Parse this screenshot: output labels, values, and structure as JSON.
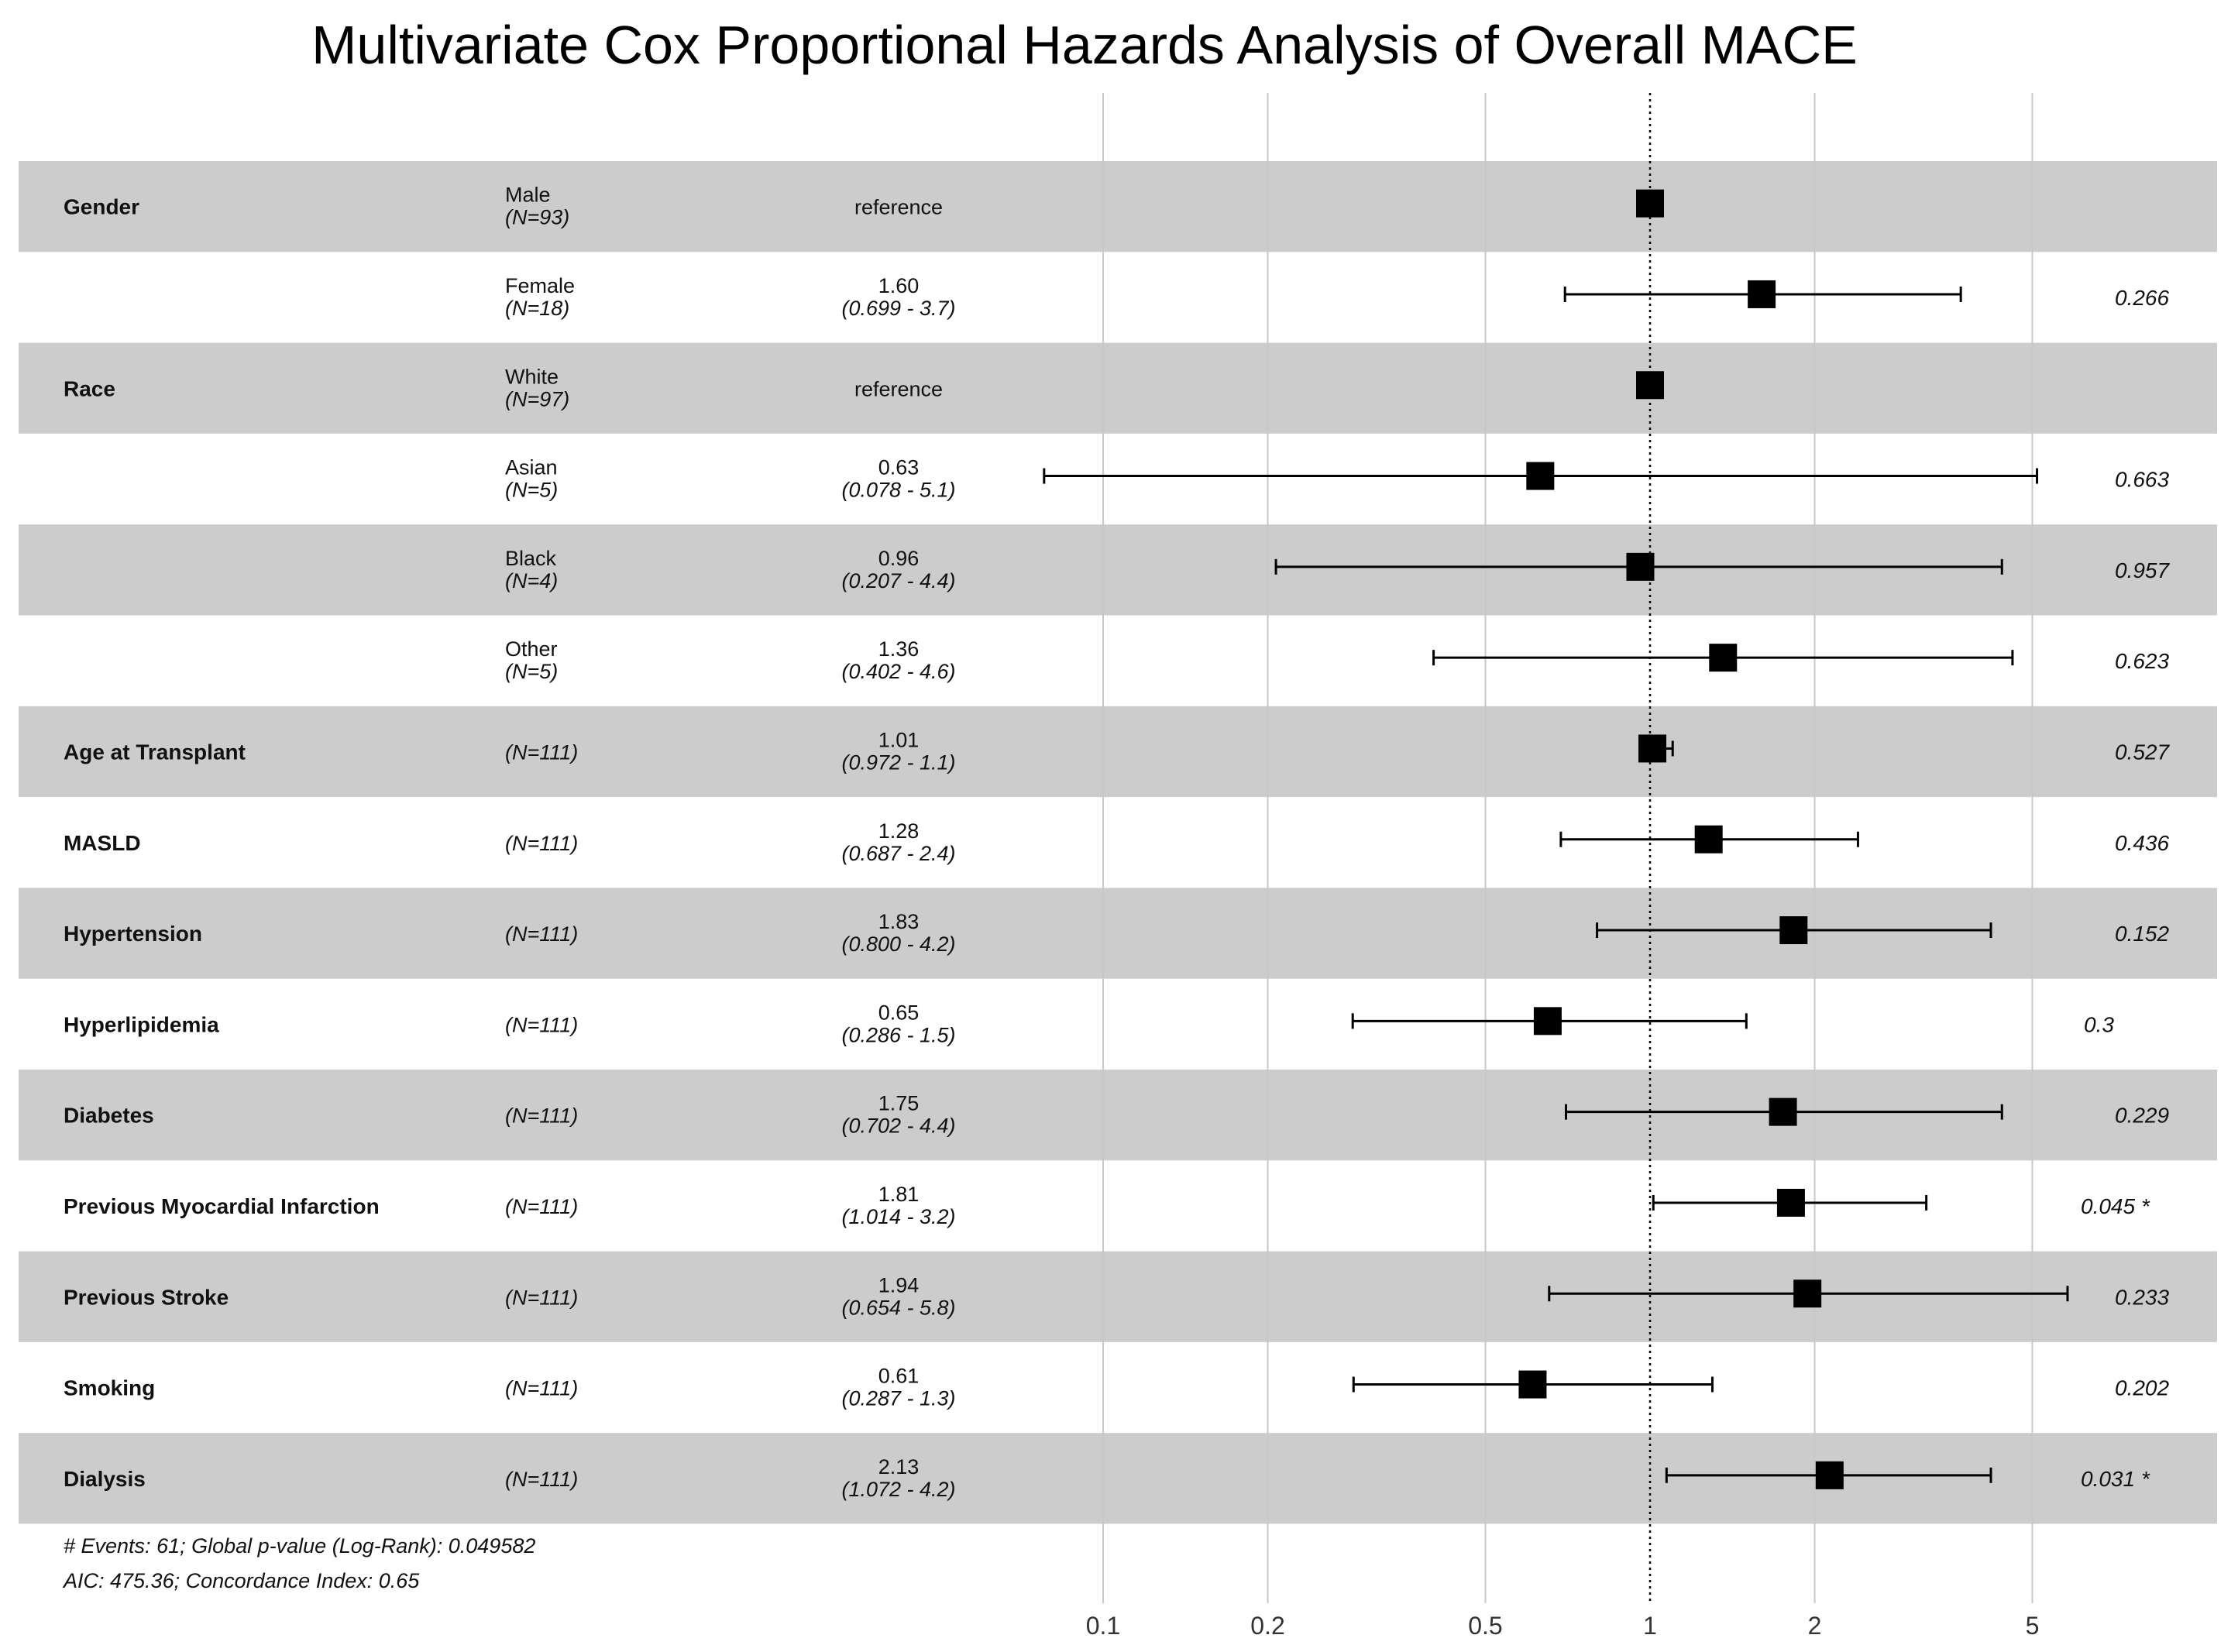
{
  "chart_data": {
    "type": "forest",
    "title": "Multivariate Cox Proportional Hazards Analysis of Overall MACE",
    "x_scale": "log",
    "xlim": [
      0.1,
      8
    ],
    "x_ticks": [
      0.1,
      0.2,
      0.5,
      1,
      2,
      5
    ],
    "x_tick_labels": [
      "0.1",
      "0.2",
      "0.5",
      "1",
      "2",
      "5"
    ],
    "reference_line": 1,
    "rows": [
      {
        "variable": "Gender",
        "category": "Male",
        "n": "(N=93)",
        "hr_text": "reference",
        "ci_text": "",
        "hr": 1,
        "lo": null,
        "hi": null,
        "p": ""
      },
      {
        "variable": "",
        "category": "Female",
        "n": "(N=18)",
        "hr_text": "1.60",
        "ci_text": "(0.699 - 3.7)",
        "hr": 1.6,
        "lo": 0.699,
        "hi": 3.7,
        "p": "0.266"
      },
      {
        "variable": "Race",
        "category": "White",
        "n": "(N=97)",
        "hr_text": "reference",
        "ci_text": "",
        "hr": 1,
        "lo": null,
        "hi": null,
        "p": ""
      },
      {
        "variable": "",
        "category": "Asian",
        "n": "(N=5)",
        "hr_text": "0.63",
        "ci_text": "(0.078 - 5.1)",
        "hr": 0.63,
        "lo": 0.078,
        "hi": 5.1,
        "p": "0.663"
      },
      {
        "variable": "",
        "category": "Black",
        "n": "(N=4)",
        "hr_text": "0.96",
        "ci_text": "(0.207 - 4.4)",
        "hr": 0.96,
        "lo": 0.207,
        "hi": 4.4,
        "p": "0.957"
      },
      {
        "variable": "",
        "category": "Other",
        "n": "(N=5)",
        "hr_text": "1.36",
        "ci_text": "(0.402 - 4.6)",
        "hr": 1.36,
        "lo": 0.402,
        "hi": 4.6,
        "p": "0.623"
      },
      {
        "variable": "Age at Transplant",
        "category": "",
        "n": "(N=111)",
        "hr_text": "1.01",
        "ci_text": "(0.972 - 1.1)",
        "hr": 1.01,
        "lo": 0.972,
        "hi": 1.1,
        "p": "0.527"
      },
      {
        "variable": "MASLD",
        "category": "",
        "n": "(N=111)",
        "hr_text": "1.28",
        "ci_text": "(0.687 - 2.4)",
        "hr": 1.28,
        "lo": 0.687,
        "hi": 2.4,
        "p": "0.436"
      },
      {
        "variable": "Hypertension",
        "category": "",
        "n": "(N=111)",
        "hr_text": "1.83",
        "ci_text": "(0.800 - 4.2)",
        "hr": 1.83,
        "lo": 0.8,
        "hi": 4.2,
        "p": "0.152"
      },
      {
        "variable": "Hyperlipidemia",
        "category": "",
        "n": "(N=111)",
        "hr_text": "0.65",
        "ci_text": "(0.286 - 1.5)",
        "hr": 0.65,
        "lo": 0.286,
        "hi": 1.5,
        "p": "0.3"
      },
      {
        "variable": "Diabetes",
        "category": "",
        "n": "(N=111)",
        "hr_text": "1.75",
        "ci_text": "(0.702 - 4.4)",
        "hr": 1.75,
        "lo": 0.702,
        "hi": 4.4,
        "p": "0.229"
      },
      {
        "variable": "Previous Myocardial Infarction",
        "category": "",
        "n": "(N=111)",
        "hr_text": "1.81",
        "ci_text": "(1.014 - 3.2)",
        "hr": 1.81,
        "lo": 1.014,
        "hi": 3.2,
        "p": "0.045 *"
      },
      {
        "variable": "Previous Stroke",
        "category": "",
        "n": "(N=111)",
        "hr_text": "1.94",
        "ci_text": "(0.654 - 5.8)",
        "hr": 1.94,
        "lo": 0.654,
        "hi": 5.8,
        "p": "0.233"
      },
      {
        "variable": "Smoking",
        "category": "",
        "n": "(N=111)",
        "hr_text": "0.61",
        "ci_text": "(0.287 - 1.3)",
        "hr": 0.61,
        "lo": 0.287,
        "hi": 1.3,
        "p": "0.202"
      },
      {
        "variable": "Dialysis",
        "category": "",
        "n": "(N=111)",
        "hr_text": "2.13",
        "ci_text": "(1.072 - 4.2)",
        "hr": 2.13,
        "lo": 1.072,
        "hi": 4.2,
        "p": "0.031 *"
      }
    ],
    "footnote_line1": "# Events: 61; Global p-value (Log-Rank): 0.049582",
    "footnote_line2": "AIC: 475.36; Concordance Index: 0.65"
  },
  "colors": {
    "band": "#cccccc",
    "grid": "#c8c8c8",
    "ink": "#000000"
  }
}
